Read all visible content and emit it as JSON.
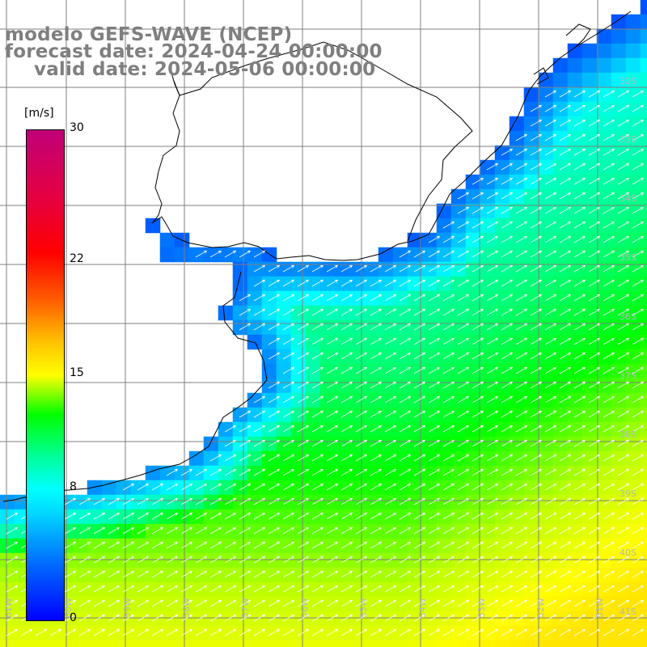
{
  "title": {
    "line1": "modelo GEFS-WAVE (NCEP)",
    "line2": "forecast date: 2024-04-24 00:00:00",
    "line3": "valid date: 2024-05-06 00:00:00"
  },
  "legend": {
    "unit": "[m/s]",
    "min": 0,
    "max": 30,
    "ticks": [
      {
        "label": "30",
        "value": 30
      },
      {
        "label": "22",
        "value": 22
      },
      {
        "label": "15",
        "value": 15
      },
      {
        "label": "8",
        "value": 8
      },
      {
        "label": "0",
        "value": 0
      }
    ],
    "colors": [
      "#0000ff",
      "#00d8ff",
      "#00ffff",
      "#00ff00",
      "#ffff00",
      "#ff0000",
      "#c00078"
    ]
  },
  "map": {
    "lat_labels": [
      "32S",
      "33S",
      "34S",
      "35S",
      "36S",
      "37S",
      "38S",
      "39S",
      "40S",
      "41S"
    ],
    "lon_labels": [
      "61W",
      "60W",
      "59W",
      "58W",
      "57W",
      "56W",
      "55W",
      "54W",
      "53W",
      "52W",
      "51W"
    ],
    "lat_range": [
      -41.3,
      -31.1
    ],
    "lon_range": [
      -61.2,
      -50.3
    ],
    "land_color": "#ffffff",
    "grid_color": "#7f7f7f",
    "coast_color": "#000000",
    "arrow_color": "#ffffff"
  }
}
